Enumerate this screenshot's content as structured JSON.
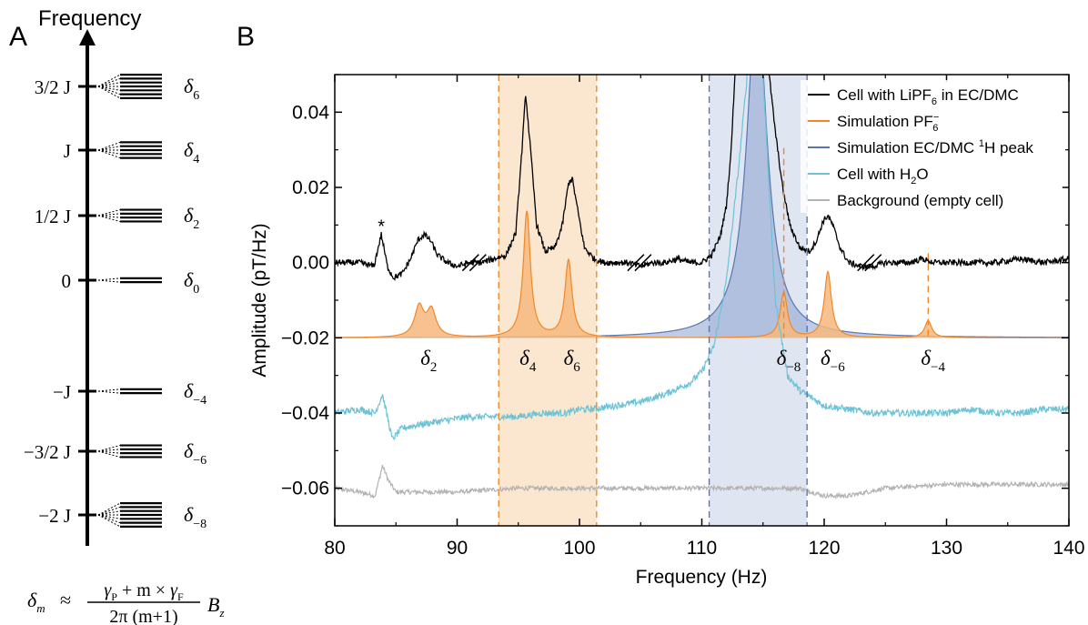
{
  "panel_a": {
    "label": "A",
    "axis_label": "Frequency",
    "levels": [
      {
        "tick": "3/2 J",
        "delta": "δ",
        "sub": "6",
        "lines": 7
      },
      {
        "tick": "J",
        "delta": "δ",
        "sub": "4",
        "lines": 5
      },
      {
        "tick": "1/2 J",
        "delta": "δ",
        "sub": "2",
        "lines": 4
      },
      {
        "tick": "0",
        "delta": "δ",
        "sub": "0",
        "lines": 2
      },
      {
        "tick": "−J",
        "delta": "δ",
        "sub": "−4",
        "lines": 2
      },
      {
        "tick": "−3/2 J",
        "delta": "δ",
        "sub": "−6",
        "lines": 4
      },
      {
        "tick": "−2 J",
        "delta": "δ",
        "sub": "−8",
        "lines": 7
      }
    ],
    "formula": {
      "lhs": "δ",
      "lhs_sub": "m",
      "approx": "≈",
      "num_a": "γ",
      "num_a_sub": "P",
      "num_mid": " + m × ",
      "num_b": "γ",
      "num_b_sub": "F",
      "den": "2π (m+1)",
      "rhs": "B",
      "rhs_sub": "z"
    }
  },
  "panel_b": {
    "label": "B",
    "colors": {
      "black": "#000000",
      "orange": "#f0882a",
      "orange_fill": "#f6b77d",
      "blue": "#5b75b3",
      "blue_fill": "#8da3cf",
      "cyan": "#6cc3d5",
      "gray": "#b3b3b3",
      "band_orange": "#fbe6cf",
      "band_blue": "#dfe5f1"
    },
    "legend": [
      {
        "pre": "Cell with LiPF",
        "sub": "6",
        "sup": "",
        "post": " in EC/DMC",
        "color": "#000000"
      },
      {
        "pre": "Simulation PF",
        "sub": "6",
        "sup": "−",
        "post": "",
        "color": "#f0882a"
      },
      {
        "pre": "Simulation EC/DMC ",
        "sub": "",
        "sup": "1",
        "post": "H peak",
        "color": "#5b75b3"
      },
      {
        "pre": "Cell with H",
        "sub": "2",
        "sup": "",
        "post": "O",
        "color": "#6cc3d5"
      },
      {
        "pre": "Background (empty cell)",
        "sub": "",
        "sup": "",
        "post": "",
        "color": "#b3b3b3"
      }
    ],
    "peak_labels": [
      {
        "delta": "δ",
        "sub": "2",
        "x": 87.6
      },
      {
        "delta": "δ",
        "sub": "4",
        "x": 95.7
      },
      {
        "delta": "δ",
        "sub": "6",
        "x": 99.3
      },
      {
        "delta": "δ",
        "sub": "−8",
        "x": 116.7
      },
      {
        "delta": "δ",
        "sub": "−6",
        "x": 120.3
      },
      {
        "delta": "δ",
        "sub": "−4",
        "x": 128.5
      }
    ],
    "asterisk": {
      "text": "*",
      "x": 83.8,
      "y": 0.0095
    }
  },
  "chart_data": {
    "type": "line",
    "xlabel": "Frequency (Hz)",
    "ylabel": "Amplitude (pT/Hz)",
    "xlim": [
      80,
      140
    ],
    "ylim": [
      -0.07,
      0.05
    ],
    "xticks": [
      "80",
      "90",
      "100",
      "110",
      "120",
      "130",
      "140"
    ],
    "yticks": [
      "−0.06",
      "−0.04",
      "−0.02",
      "0.00",
      "0.02",
      "0.04"
    ],
    "legend_position": "top-right",
    "grid": false,
    "shaded_bands": [
      {
        "x": [
          93.4,
          101.4
        ],
        "color": "orange"
      },
      {
        "x": [
          110.6,
          118.6
        ],
        "color": "blue"
      }
    ],
    "series": [
      {
        "name": "Cell with LiPF6 in EC/DMC",
        "x": [
          80,
          82,
          83.2,
          83.8,
          84.3,
          84.8,
          85.5,
          86.2,
          86.8,
          87.3,
          87.8,
          88.4,
          89.2,
          90,
          91,
          92,
          93,
          94,
          94.8,
          95.3,
          95.6,
          96,
          96.5,
          97.2,
          98,
          98.6,
          99.1,
          99.4,
          99.8,
          100.4,
          101.2,
          102,
          103,
          104,
          105,
          106,
          107,
          108,
          109,
          110,
          110.8,
          111.5,
          112,
          112.4,
          112.7,
          113,
          115,
          115.5,
          116,
          116.6,
          117.2,
          118,
          118.8,
          119.4,
          119.9,
          120.3,
          120.7,
          121.3,
          122,
          123,
          124,
          125,
          126,
          127,
          128,
          129,
          130,
          132,
          134,
          136,
          138,
          140
        ],
        "y": [
          0.0,
          0.0,
          -0.001,
          0.0075,
          -0.001,
          -0.004,
          -0.003,
          0.001,
          0.006,
          0.0075,
          0.006,
          0.002,
          0.0,
          -0.001,
          0.0,
          0.0,
          0.001,
          0.002,
          0.008,
          0.03,
          0.045,
          0.03,
          0.01,
          0.003,
          0.004,
          0.01,
          0.021,
          0.0225,
          0.015,
          0.004,
          0.001,
          0.0,
          0.0,
          0.0,
          -0.001,
          0.0,
          0.0,
          0.001,
          0.0,
          0.0,
          0.002,
          0.007,
          0.015,
          0.03,
          0.05,
          0.065,
          0.065,
          0.05,
          0.035,
          0.02,
          0.01,
          0.004,
          0.003,
          0.006,
          0.011,
          0.0125,
          0.01,
          0.004,
          0.0,
          -0.001,
          -0.001,
          0.0,
          0.0,
          0.0,
          0.001,
          0.0,
          0.0,
          0.0,
          0.0,
          0.001,
          0.0,
          0.001
        ],
        "color": "black",
        "noise": 0.0008
      },
      {
        "name": "Simulation PF6−",
        "lorentz_baseline": -0.02,
        "peaks": [
          {
            "x0": 86.9,
            "a": 0.008,
            "w": 0.45
          },
          {
            "x0": 87.9,
            "a": 0.007,
            "w": 0.45
          },
          {
            "x0": 95.7,
            "a": 0.0335,
            "w": 0.35
          },
          {
            "x0": 99.1,
            "a": 0.0205,
            "w": 0.35
          },
          {
            "x0": 116.7,
            "a": 0.012,
            "w": 0.35
          },
          {
            "x0": 120.3,
            "a": 0.0175,
            "w": 0.35
          },
          {
            "x0": 128.5,
            "a": 0.0045,
            "w": 0.35
          }
        ],
        "color": "orange"
      },
      {
        "name": "Simulation EC/DMC 1H peak",
        "lorentz_baseline": -0.02,
        "peaks": [
          {
            "x0": 114.5,
            "a": 0.09,
            "w": 1.0
          }
        ],
        "color": "blue"
      },
      {
        "name": "Cell with H2O",
        "x": [
          80,
          82,
          83.3,
          83.9,
          84.3,
          84.7,
          85.5,
          87,
          89,
          91,
          93,
          95,
          97,
          99,
          100,
          101,
          103,
          105,
          107,
          109,
          110,
          111,
          112,
          113,
          114,
          115,
          116,
          117,
          118,
          119,
          120,
          122,
          124,
          126,
          128,
          130,
          132,
          134,
          136,
          138,
          140
        ],
        "y": [
          -0.04,
          -0.039,
          -0.04,
          -0.035,
          -0.041,
          -0.047,
          -0.044,
          -0.043,
          -0.042,
          -0.041,
          -0.041,
          -0.041,
          -0.04,
          -0.04,
          -0.039,
          -0.039,
          -0.038,
          -0.037,
          -0.035,
          -0.032,
          -0.029,
          -0.022,
          -0.005,
          0.025,
          0.06,
          0.05,
          -0.01,
          -0.03,
          -0.034,
          -0.036,
          -0.038,
          -0.039,
          -0.04,
          -0.04,
          -0.04,
          -0.04,
          -0.039,
          -0.04,
          -0.04,
          -0.039,
          -0.039
        ],
        "color": "cyan",
        "noise": 0.0009
      },
      {
        "name": "Background (empty cell)",
        "x": [
          80,
          82,
          83.3,
          83.9,
          84.4,
          85,
          86,
          88,
          90,
          95,
          100,
          105,
          110,
          115,
          118,
          120,
          122,
          125,
          130,
          135,
          140
        ],
        "y": [
          -0.06,
          -0.061,
          -0.062,
          -0.054,
          -0.058,
          -0.061,
          -0.061,
          -0.061,
          -0.061,
          -0.06,
          -0.06,
          -0.06,
          -0.06,
          -0.06,
          -0.06,
          -0.062,
          -0.062,
          -0.06,
          -0.059,
          -0.059,
          -0.059
        ],
        "color": "gray",
        "noise": 0.0006
      }
    ],
    "break_marks": [
      91.4,
      104.9,
      123.7
    ],
    "dashed_markers_orange": [
      93.4,
      101.4,
      116.7,
      128.5
    ],
    "dashed_markers_blue": [
      110.6,
      118.6
    ]
  }
}
